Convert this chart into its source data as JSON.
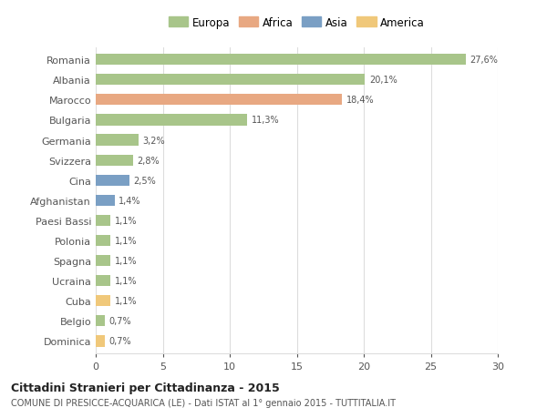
{
  "countries": [
    "Romania",
    "Albania",
    "Marocco",
    "Bulgaria",
    "Germania",
    "Svizzera",
    "Cina",
    "Afghanistan",
    "Paesi Bassi",
    "Polonia",
    "Spagna",
    "Ucraina",
    "Cuba",
    "Belgio",
    "Dominica"
  ],
  "values": [
    27.6,
    20.1,
    18.4,
    11.3,
    3.2,
    2.8,
    2.5,
    1.4,
    1.1,
    1.1,
    1.1,
    1.1,
    1.1,
    0.7,
    0.7
  ],
  "labels": [
    "27,6%",
    "20,1%",
    "18,4%",
    "11,3%",
    "3,2%",
    "2,8%",
    "2,5%",
    "1,4%",
    "1,1%",
    "1,1%",
    "1,1%",
    "1,1%",
    "1,1%",
    "0,7%",
    "0,7%"
  ],
  "continents": [
    "Europa",
    "Europa",
    "Africa",
    "Europa",
    "Europa",
    "Europa",
    "Asia",
    "Asia",
    "Europa",
    "Europa",
    "Europa",
    "Europa",
    "America",
    "Europa",
    "America"
  ],
  "colors": {
    "Europa": "#a8c58a",
    "Africa": "#e8a882",
    "Asia": "#7a9fc4",
    "America": "#f0c87a"
  },
  "legend_order": [
    "Europa",
    "Africa",
    "Asia",
    "America"
  ],
  "title": "Cittadini Stranieri per Cittadinanza - 2015",
  "subtitle": "COMUNE DI PRESICCE-ACQUARICA (LE) - Dati ISTAT al 1° gennaio 2015 - TUTTITALIA.IT",
  "xlim": [
    0,
    30
  ],
  "xticks": [
    0,
    5,
    10,
    15,
    20,
    25,
    30
  ],
  "background_color": "#ffffff",
  "grid_color": "#dddddd",
  "bar_height": 0.55
}
